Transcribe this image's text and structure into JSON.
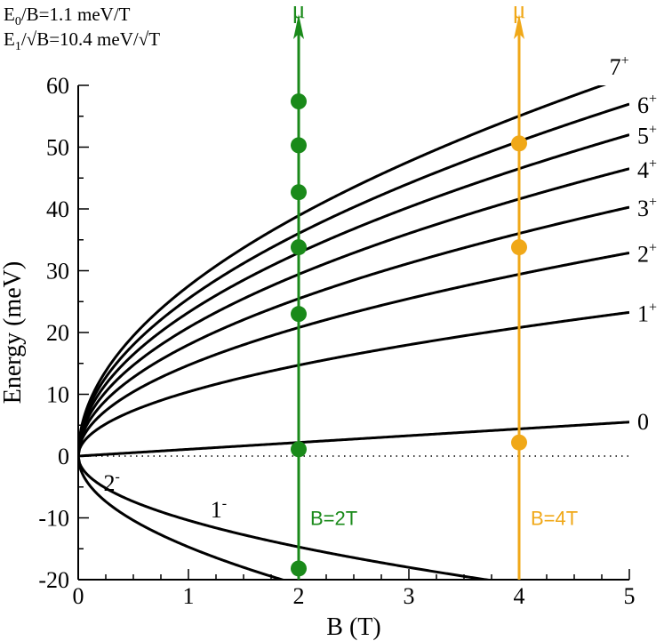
{
  "chart_data": {
    "type": "line",
    "xlabel": "B (T)",
    "ylabel": "Energy (meV)",
    "xlim": [
      0,
      5
    ],
    "ylim": [
      -20,
      60
    ],
    "x_ticks": [
      0,
      1,
      2,
      3,
      4,
      5
    ],
    "y_ticks": [
      -20,
      -10,
      0,
      10,
      20,
      30,
      40,
      50,
      60
    ],
    "grid": false,
    "zero_line": "dotted",
    "parameters": {
      "e0_label": "E",
      "e0_sub": "0",
      "e0_rest": "/B=1.1 meV/T",
      "e1_label": "E",
      "e1_sub": "1",
      "e1_rest": "/√B=10.4 meV/√T",
      "E0_per_T": 1.1,
      "E1_per_sqrtT": 10.4
    },
    "series": [
      {
        "label": "7",
        "sup": "+",
        "n": 7,
        "sign": 1
      },
      {
        "label": "6",
        "sup": "+",
        "n": 6,
        "sign": 1
      },
      {
        "label": "5",
        "sup": "+",
        "n": 5,
        "sign": 1
      },
      {
        "label": "4",
        "sup": "+",
        "n": 4,
        "sign": 1
      },
      {
        "label": "3",
        "sup": "+",
        "n": 3,
        "sign": 1
      },
      {
        "label": "2",
        "sup": "+",
        "n": 2,
        "sign": 1
      },
      {
        "label": "1",
        "sup": "+",
        "n": 1,
        "sign": 1
      },
      {
        "label": "0",
        "sup": "",
        "n": 0,
        "sign": 0
      },
      {
        "label": "1",
        "sup": "-",
        "n": 1,
        "sign": -1
      },
      {
        "label": "2",
        "sup": "-",
        "n": 2,
        "sign": -1
      }
    ],
    "markers": [
      {
        "B": 2,
        "color": "#1a8a1a",
        "label": "B=2T",
        "arrow_label": "μ",
        "points": [
          {
            "level": "0",
            "energy": 1.1
          },
          {
            "level": "1-",
            "energy": -18.2
          },
          {
            "level": "1+",
            "energy": 23.0
          },
          {
            "level": "2+",
            "energy": 33.8
          },
          {
            "level": "3+",
            "energy": 42.7
          },
          {
            "level": "4+",
            "energy": 50.3
          },
          {
            "level": "5+",
            "energy": 57.4
          }
        ]
      },
      {
        "B": 4,
        "color": "#f0a818",
        "label": "B=4T",
        "arrow_label": "μ",
        "points": [
          {
            "level": "0",
            "energy": 2.2
          },
          {
            "level": "1+",
            "energy": 33.8
          },
          {
            "level": "2+",
            "energy": 50.6
          }
        ]
      }
    ]
  }
}
